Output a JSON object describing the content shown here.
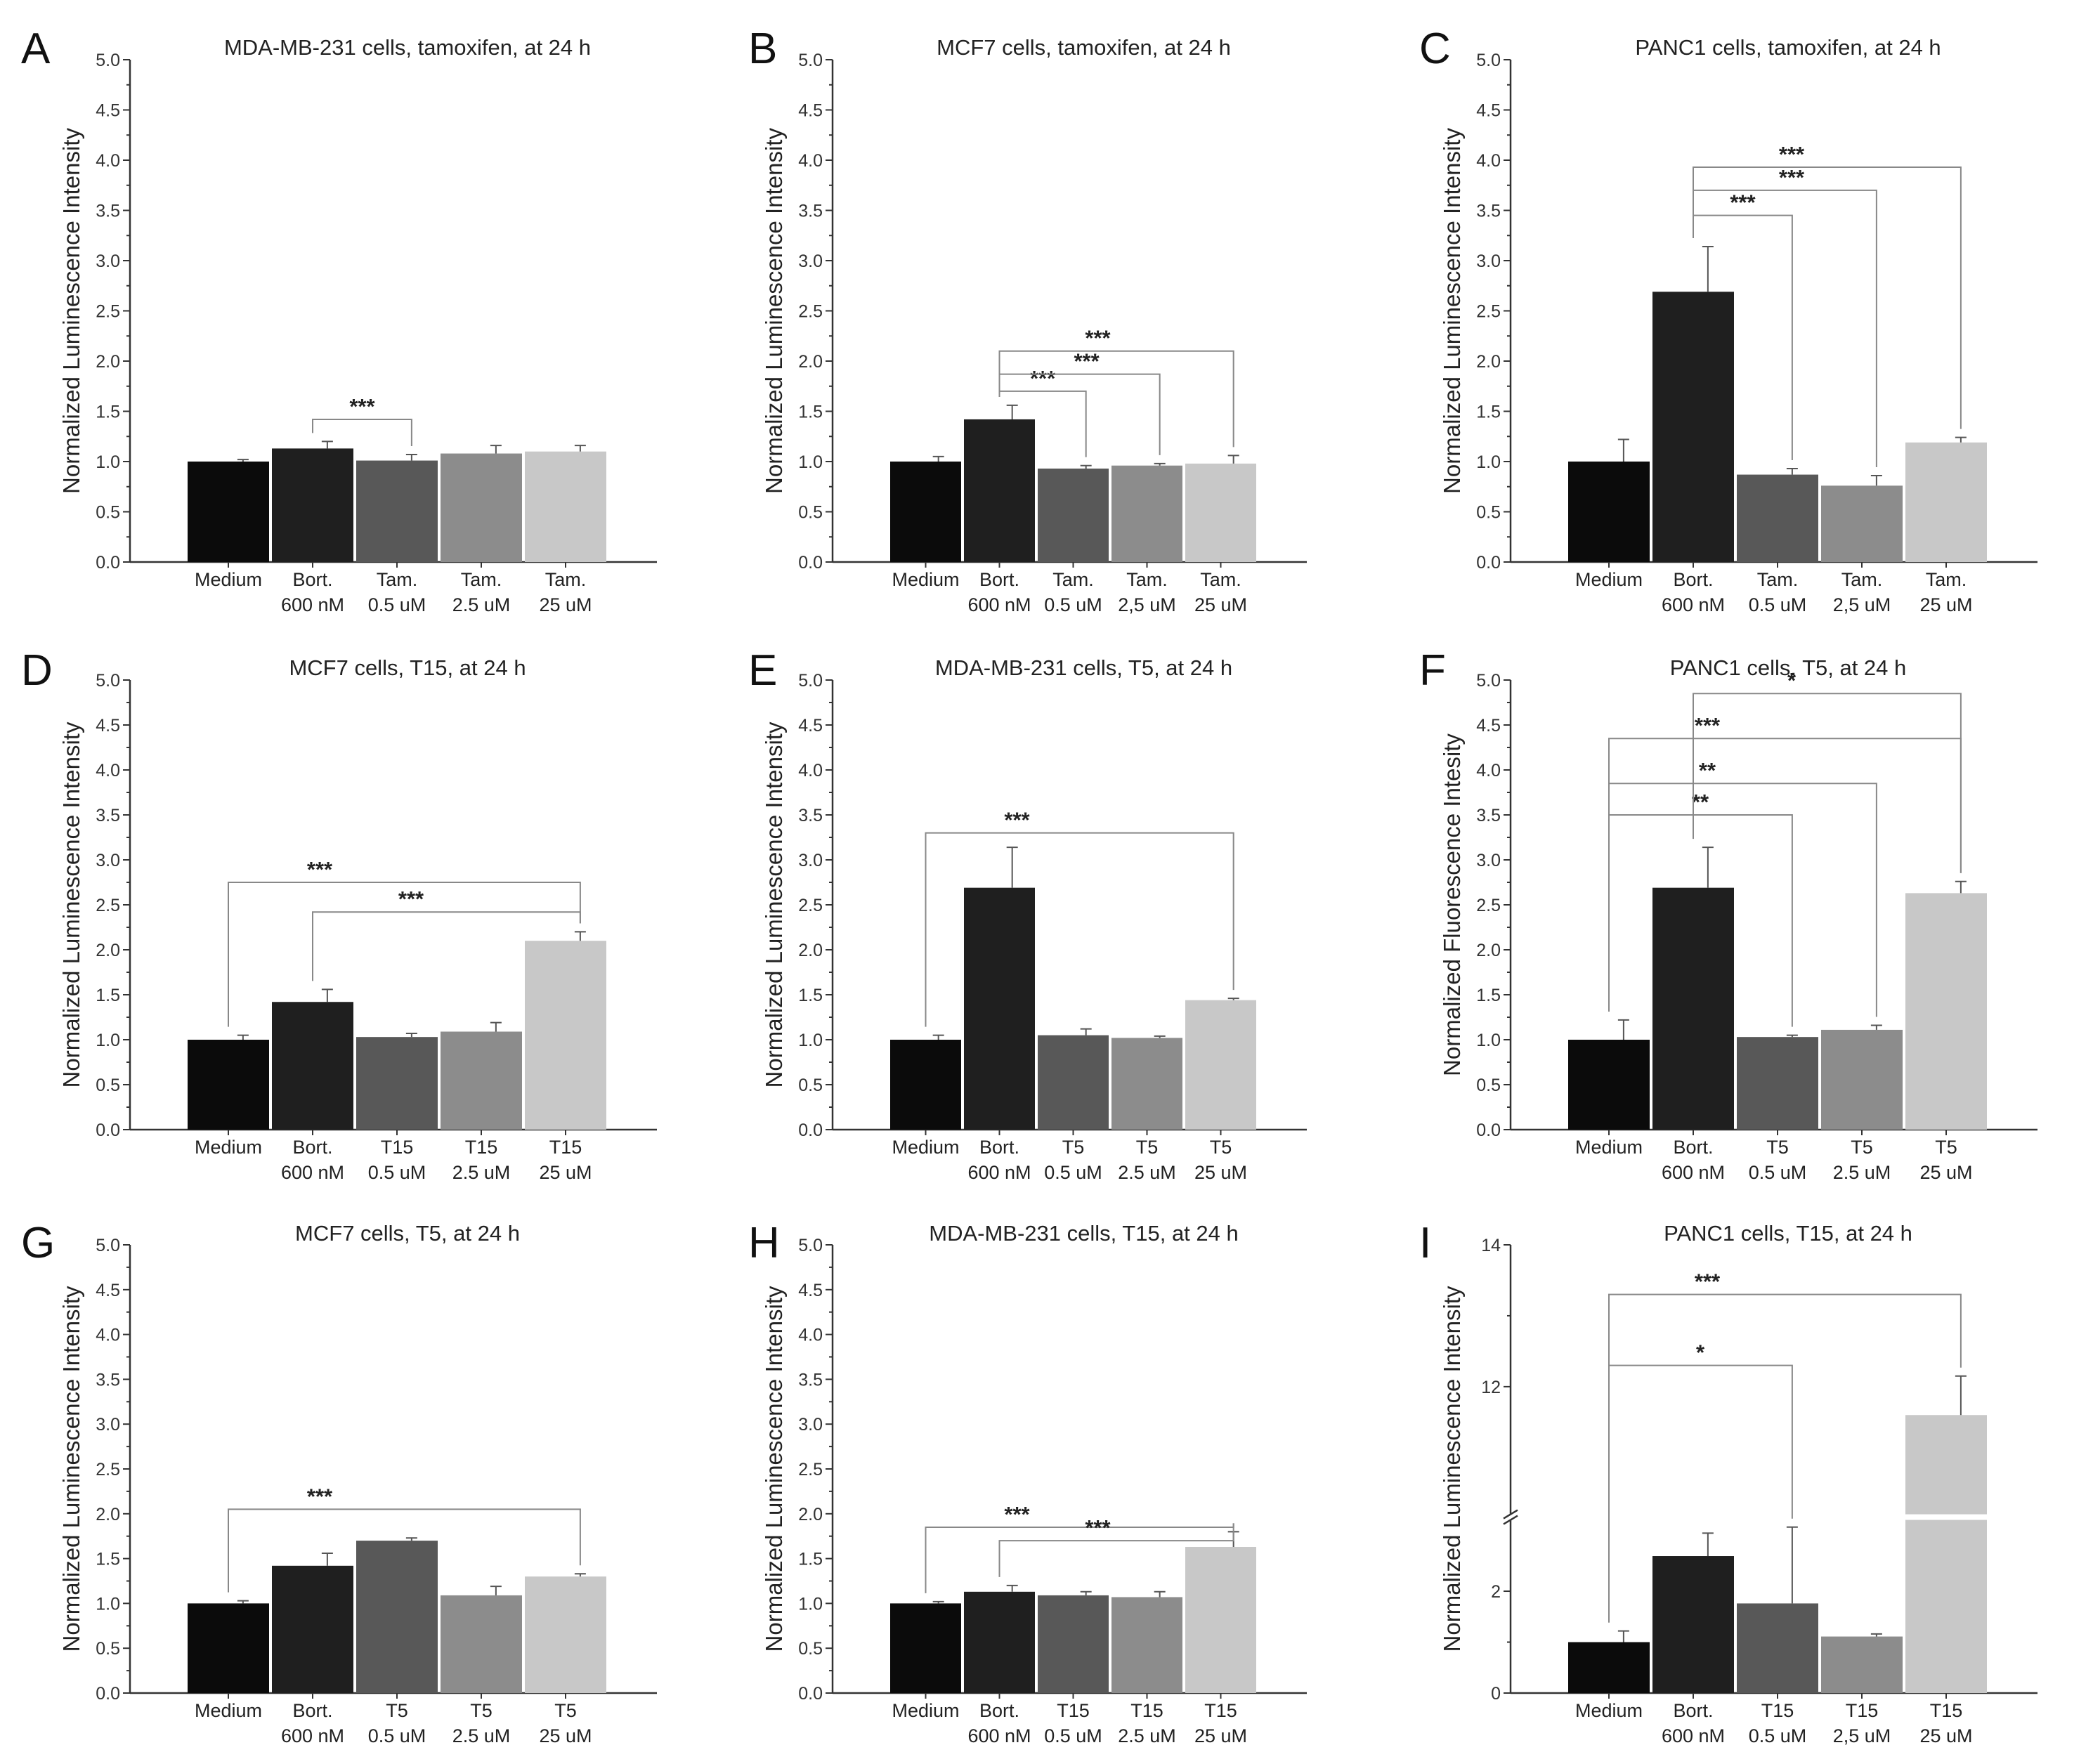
{
  "chart_data": [
    {
      "panel": "A",
      "type": "bar",
      "title": "MDA-MB-231 cells, tamoxifen, at 24 h",
      "ylabel": "Normalized Luminescence Intensity",
      "ylim": [
        0,
        5
      ],
      "yticks": [
        "0.0",
        "0.5",
        "1.0",
        "1.5",
        "2.0",
        "2.5",
        "3.0",
        "3.5",
        "4.0",
        "4.5",
        "5.0"
      ],
      "categories": [
        [
          "Medium"
        ],
        [
          "Bort.",
          "600 nM"
        ],
        [
          "Tam.",
          "0.5 uM"
        ],
        [
          "Tam.",
          "2.5 uM"
        ],
        [
          "Tam.",
          "25 uM"
        ]
      ],
      "values": [
        1.0,
        1.13,
        1.01,
        1.08,
        1.1
      ],
      "errors": [
        0.02,
        0.07,
        0.06,
        0.08,
        0.06
      ],
      "colors": [
        "#0b0b0b",
        "#1f1f1f",
        "#585858",
        "#8c8c8c",
        "#c8c8c8"
      ],
      "significance": [
        {
          "from": 1,
          "to": 2,
          "label": "***",
          "level": 1.42
        }
      ]
    },
    {
      "panel": "B",
      "type": "bar",
      "title": "MCF7 cells, tamoxifen, at 24 h",
      "ylabel": "Normalized Luminescence Intensity",
      "ylim": [
        0,
        5
      ],
      "yticks": [
        "0.0",
        "0.5",
        "1.0",
        "1.5",
        "2.0",
        "2.5",
        "3.0",
        "3.5",
        "4.0",
        "4.5",
        "5.0"
      ],
      "categories": [
        [
          "Medium"
        ],
        [
          "Bort.",
          "600 nM"
        ],
        [
          "Tam.",
          "0.5 uM"
        ],
        [
          "Tam.",
          "2,5 uM"
        ],
        [
          "Tam.",
          "25 uM"
        ]
      ],
      "values": [
        1.0,
        1.42,
        0.93,
        0.96,
        0.98
      ],
      "errors": [
        0.05,
        0.14,
        0.03,
        0.02,
        0.08
      ],
      "colors": [
        "#0b0b0b",
        "#1f1f1f",
        "#585858",
        "#8c8c8c",
        "#c8c8c8"
      ],
      "significance": [
        {
          "from": 1,
          "to": 2,
          "label": "***",
          "level": 1.7
        },
        {
          "from": 1,
          "to": 3,
          "label": "***",
          "level": 1.87
        },
        {
          "from": 1,
          "to": 4,
          "label": "***",
          "level": 2.1
        }
      ]
    },
    {
      "panel": "C",
      "type": "bar",
      "title": "PANC1 cells, tamoxifen, at 24 h",
      "ylabel": "Normalized Luminescence Intensity",
      "ylim": [
        0,
        5
      ],
      "yticks": [
        "0.0",
        "0.5",
        "1.0",
        "1.5",
        "2.0",
        "2.5",
        "3.0",
        "3.5",
        "4.0",
        "4.5",
        "5.0"
      ],
      "categories": [
        [
          "Medium"
        ],
        [
          "Bort.",
          "600 nM"
        ],
        [
          "Tam.",
          "0.5 uM"
        ],
        [
          "Tam.",
          "2,5 uM"
        ],
        [
          "Tam.",
          "25 uM"
        ]
      ],
      "values": [
        1.0,
        2.69,
        0.87,
        0.76,
        1.19
      ],
      "errors": [
        0.22,
        0.45,
        0.06,
        0.1,
        0.05
      ],
      "colors": [
        "#0b0b0b",
        "#1f1f1f",
        "#585858",
        "#8c8c8c",
        "#c8c8c8"
      ],
      "significance": [
        {
          "from": 1,
          "to": 2,
          "label": "***",
          "level": 3.45
        },
        {
          "from": 1,
          "to": 3,
          "label": "***",
          "level": 3.7
        },
        {
          "from": 1,
          "to": 4,
          "label": "***",
          "level": 3.93
        }
      ]
    },
    {
      "panel": "D",
      "type": "bar",
      "title": "MCF7 cells, T15, at 24 h",
      "ylabel": "Normalized Luminescence Intensity",
      "ylim": [
        0,
        5
      ],
      "yticks": [
        "0.0",
        "0.5",
        "1.0",
        "1.5",
        "2.0",
        "2.5",
        "3.0",
        "3.5",
        "4.0",
        "4.5",
        "5.0"
      ],
      "categories": [
        [
          "Medium"
        ],
        [
          "Bort.",
          "600 nM"
        ],
        [
          "T15",
          "0.5 uM"
        ],
        [
          "T15",
          "2.5 uM"
        ],
        [
          "T15",
          "25 uM"
        ]
      ],
      "values": [
        1.0,
        1.42,
        1.03,
        1.09,
        2.1
      ],
      "errors": [
        0.05,
        0.14,
        0.04,
        0.1,
        0.1
      ],
      "colors": [
        "#0b0b0b",
        "#1f1f1f",
        "#585858",
        "#8c8c8c",
        "#c8c8c8"
      ],
      "significance": [
        {
          "from": 0,
          "to": 4,
          "label": "***",
          "level": 2.75
        },
        {
          "from": 1,
          "to": 4,
          "label": "***",
          "level": 2.42
        }
      ]
    },
    {
      "panel": "E",
      "type": "bar",
      "title": "MDA-MB-231 cells, T5, at 24 h",
      "ylabel": "Normalized Luminescence Intensity",
      "ylim": [
        0,
        5
      ],
      "yticks": [
        "0.0",
        "0.5",
        "1.0",
        "1.5",
        "2.0",
        "2.5",
        "3.0",
        "3.5",
        "4.0",
        "4.5",
        "5.0"
      ],
      "categories": [
        [
          "Medium"
        ],
        [
          "Bort.",
          "600 nM"
        ],
        [
          "T5",
          "0.5 uM"
        ],
        [
          "T5",
          "2.5 uM"
        ],
        [
          "T5",
          "25 uM"
        ]
      ],
      "values": [
        1.0,
        2.69,
        1.05,
        1.02,
        1.44
      ],
      "errors": [
        0.05,
        0.45,
        0.07,
        0.02,
        0.02
      ],
      "colors": [
        "#0b0b0b",
        "#1f1f1f",
        "#585858",
        "#8c8c8c",
        "#c8c8c8"
      ],
      "significance": [
        {
          "from": 0,
          "to": 4,
          "label": "***",
          "level": 3.3
        }
      ]
    },
    {
      "panel": "F",
      "type": "bar",
      "title": "PANC1 cells, T5, at 24 h",
      "ylabel": "Normalized Fluorescence Intesity",
      "ylim": [
        0,
        5
      ],
      "yticks": [
        "0.0",
        "0.5",
        "1.0",
        "1.5",
        "2.0",
        "2.5",
        "3.0",
        "3.5",
        "4.0",
        "4.5",
        "5.0"
      ],
      "categories": [
        [
          "Medium"
        ],
        [
          "Bort.",
          "600 nM"
        ],
        [
          "T5",
          "0.5 uM"
        ],
        [
          "T5",
          "2.5 uM"
        ],
        [
          "T5",
          "25 uM"
        ]
      ],
      "values": [
        1.0,
        2.69,
        1.03,
        1.11,
        2.63
      ],
      "errors": [
        0.22,
        0.45,
        0.02,
        0.05,
        0.13
      ],
      "colors": [
        "#0b0b0b",
        "#1f1f1f",
        "#585858",
        "#8c8c8c",
        "#c8c8c8"
      ],
      "significance": [
        {
          "from": 0,
          "to": 2,
          "label": "**",
          "level": 3.5
        },
        {
          "from": 0,
          "to": 3,
          "label": "**",
          "level": 3.85
        },
        {
          "from": 0,
          "to": 4,
          "label": "***",
          "level": 4.35
        },
        {
          "from": 1,
          "to": 4,
          "label": "*",
          "level": 4.85
        }
      ]
    },
    {
      "panel": "G",
      "type": "bar",
      "title": "MCF7 cells, T5, at 24 h",
      "ylabel": "Normalized Luminescence Intensity",
      "ylim": [
        0,
        5
      ],
      "yticks": [
        "0.0",
        "0.5",
        "1.0",
        "1.5",
        "2.0",
        "2.5",
        "3.0",
        "3.5",
        "4.0",
        "4.5",
        "5.0"
      ],
      "categories": [
        [
          "Medium"
        ],
        [
          "Bort.",
          "600 nM"
        ],
        [
          "T5",
          "0.5 uM"
        ],
        [
          "T5",
          "2.5 uM"
        ],
        [
          "T5",
          "25 uM"
        ]
      ],
      "values": [
        1.0,
        1.42,
        1.7,
        1.09,
        1.3
      ],
      "errors": [
        0.03,
        0.14,
        0.03,
        0.1,
        0.03
      ],
      "colors": [
        "#0b0b0b",
        "#1f1f1f",
        "#585858",
        "#8c8c8c",
        "#c8c8c8"
      ],
      "significance": [
        {
          "from": 0,
          "to": 4,
          "label": "***",
          "level": 2.05
        }
      ]
    },
    {
      "panel": "H",
      "type": "bar",
      "title": "MDA-MB-231 cells, T15, at 24 h",
      "ylabel": "Normalized Luminescence Intensity",
      "ylim": [
        0,
        5
      ],
      "yticks": [
        "0.0",
        "0.5",
        "1.0",
        "1.5",
        "2.0",
        "2.5",
        "3.0",
        "3.5",
        "4.0",
        "4.5",
        "5.0"
      ],
      "categories": [
        [
          "Medium"
        ],
        [
          "Bort.",
          "600 nM"
        ],
        [
          "T15",
          "0.5 uM"
        ],
        [
          "T15",
          "2.5 uM"
        ],
        [
          "T15",
          "25 uM"
        ]
      ],
      "values": [
        1.0,
        1.13,
        1.09,
        1.07,
        1.63
      ],
      "errors": [
        0.02,
        0.07,
        0.04,
        0.06,
        0.17
      ],
      "colors": [
        "#0b0b0b",
        "#1f1f1f",
        "#585858",
        "#8c8c8c",
        "#c8c8c8"
      ],
      "significance": [
        {
          "from": 0,
          "to": 4,
          "label": "***",
          "level": 1.85
        },
        {
          "from": 1,
          "to": 4,
          "label": "***",
          "level": 1.7
        }
      ]
    },
    {
      "panel": "I",
      "type": "bar",
      "title": "PANC1 cells, T15, at 24 h",
      "ylabel": "Normalized Luminescence Intensity",
      "broken_axis": true,
      "lower_range": [
        0,
        3.4
      ],
      "upper_range": [
        10.2,
        14
      ],
      "yticks_lower": [
        0,
        2
      ],
      "yticks_upper": [
        12,
        14
      ],
      "categories": [
        [
          "Medium"
        ],
        [
          "Bort.",
          "600 nM"
        ],
        [
          "T15",
          "0.5 uM"
        ],
        [
          "T15",
          "2,5 uM"
        ],
        [
          "T15",
          "25 uM"
        ]
      ],
      "values": [
        1.0,
        2.69,
        1.76,
        1.11,
        11.6
      ],
      "errors": [
        0.22,
        0.45,
        1.5,
        0.05,
        0.55
      ],
      "colors": [
        "#0b0b0b",
        "#1f1f1f",
        "#585858",
        "#8c8c8c",
        "#c8c8c8"
      ],
      "significance": [
        {
          "from": 0,
          "to": 2,
          "label": "*",
          "level": 12.3
        },
        {
          "from": 0,
          "to": 4,
          "label": "***",
          "level": 13.3
        }
      ]
    }
  ]
}
